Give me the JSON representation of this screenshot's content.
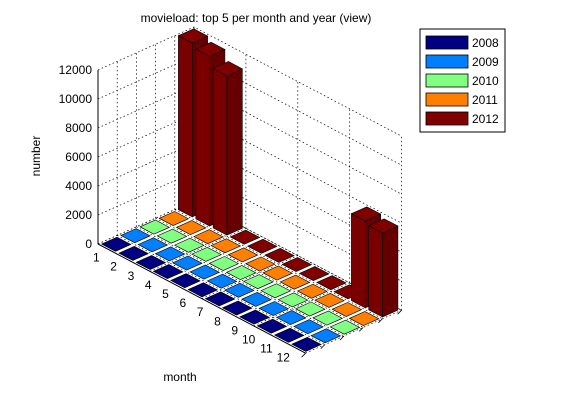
{
  "chart_data": {
    "type": "bar3d",
    "title": "movieload: top 5 per month and year (view)",
    "xlabel": "month",
    "ylabel": "",
    "zlabel": "number",
    "zlim": [
      0,
      12000
    ],
    "z_ticks": [
      "0",
      "2000",
      "4000",
      "6000",
      "8000",
      "10000",
      "12000"
    ],
    "categories": [
      "1",
      "2",
      "3",
      "4",
      "5",
      "6",
      "7",
      "8",
      "9",
      "10",
      "11",
      "12"
    ],
    "series": [
      {
        "name": "2008",
        "color": "#000080",
        "values": [
          0,
          0,
          0,
          0,
          0,
          0,
          0,
          0,
          0,
          0,
          0,
          0
        ]
      },
      {
        "name": "2009",
        "color": "#0080ff",
        "values": [
          0,
          0,
          0,
          0,
          0,
          0,
          0,
          0,
          0,
          0,
          0,
          0
        ]
      },
      {
        "name": "2010",
        "color": "#80ff80",
        "values": [
          0,
          0,
          0,
          0,
          0,
          0,
          0,
          0,
          0,
          0,
          0,
          0
        ]
      },
      {
        "name": "2011",
        "color": "#ff8000",
        "values": [
          0,
          0,
          0,
          0,
          0,
          0,
          0,
          0,
          0,
          0,
          0,
          0
        ]
      },
      {
        "name": "2012",
        "color": "#800000",
        "values": [
          12000,
          11700,
          11000,
          0,
          0,
          0,
          0,
          0,
          0,
          0,
          6000,
          5800
        ]
      }
    ],
    "grid": true,
    "legend_position": "top-right"
  }
}
